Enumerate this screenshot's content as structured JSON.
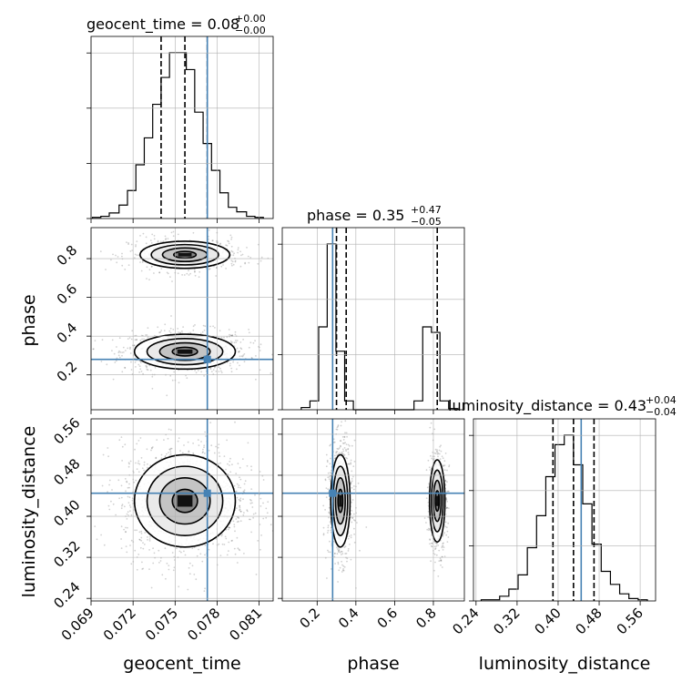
{
  "figure": {
    "type": "corner-plot",
    "truth_color": "#4682b4",
    "hist_color": "#000000",
    "grid": true
  },
  "parameters": {
    "geocent_time": {
      "label": "geocent_time",
      "title": "geocent_time = 0.08",
      "sup": "+0.00",
      "sub": "−0.00",
      "range": [
        0.069,
        0.082
      ],
      "ticks": [
        "0.069",
        "0.072",
        "0.075",
        "0.078",
        "0.081"
      ],
      "truth": 0.0773,
      "quantiles": [
        0.074,
        0.0757,
        0.0773
      ]
    },
    "phase": {
      "label": "phase",
      "title": "phase = 0.35",
      "sup": "+0.47",
      "sub": "−0.05",
      "range": [
        0.02,
        0.96
      ],
      "ticks": [
        "0.2",
        "0.4",
        "0.6",
        "0.8"
      ],
      "truth": 0.28,
      "quantiles": [
        0.3,
        0.35,
        0.82
      ]
    },
    "luminosity_distance": {
      "label": "luminosity_distance",
      "title": "luminosity_distance = 0.43",
      "sup": "+0.04",
      "sub": "−0.04",
      "range": [
        0.235,
        0.59
      ],
      "ticks": [
        "0.24",
        "0.32",
        "0.40",
        "0.48",
        "0.56"
      ],
      "truth": 0.445,
      "quantiles": [
        0.39,
        0.43,
        0.47
      ]
    }
  },
  "chart_data": {
    "type": "corner",
    "parameters": [
      "geocent_time",
      "phase",
      "luminosity_distance"
    ],
    "histograms": {
      "geocent_time": {
        "bin_edges": [
          0.0691,
          0.0697,
          0.0703,
          0.071,
          0.0716,
          0.0722,
          0.0728,
          0.0734,
          0.074,
          0.0746,
          0.0752,
          0.0758,
          0.0764,
          0.077,
          0.0776,
          0.0782,
          0.0788,
          0.0794,
          0.0801,
          0.0807,
          0.0813
        ],
        "counts": [
          1,
          2,
          5,
          12,
          25,
          48,
          72,
          102,
          126,
          148,
          148,
          133,
          95,
          67,
          43,
          23,
          10,
          6,
          2,
          1
        ]
      },
      "phase": {
        "bin_edges": [
          0.118,
          0.163,
          0.208,
          0.252,
          0.297,
          0.342,
          0.387,
          0.431,
          0.476,
          0.521,
          0.566,
          0.61,
          0.655,
          0.7,
          0.745,
          0.79,
          0.834,
          0.879,
          0.924
        ],
        "counts": [
          2,
          8,
          75,
          150,
          53,
          8,
          0,
          0,
          0,
          0,
          0,
          0,
          0,
          8,
          75,
          70,
          8,
          1
        ]
      },
      "luminosity_distance": {
        "bin_edges": [
          0.25,
          0.268,
          0.286,
          0.304,
          0.322,
          0.34,
          0.358,
          0.376,
          0.394,
          0.412,
          0.43,
          0.448,
          0.466,
          0.484,
          0.502,
          0.52,
          0.538,
          0.556,
          0.574
        ],
        "counts": [
          1,
          1,
          4,
          10,
          22,
          45,
          72,
          105,
          132,
          140,
          115,
          82,
          48,
          25,
          14,
          6,
          2,
          1
        ]
      }
    },
    "contours_2d": [
      {
        "x": "geocent_time",
        "y": "phase",
        "modes": [
          {
            "center": [
              0.0757,
              0.32
            ],
            "sigma": [
              0.0018,
              0.045
            ],
            "weight": 0.6
          },
          {
            "center": [
              0.0757,
              0.82
            ],
            "sigma": [
              0.0016,
              0.035
            ],
            "weight": 0.4
          }
        ]
      },
      {
        "x": "geocent_time",
        "y": "luminosity_distance",
        "modes": [
          {
            "center": [
              0.0757,
              0.43
            ],
            "sigma": [
              0.0018,
              0.045
            ],
            "weight": 1.0
          }
        ]
      },
      {
        "x": "phase",
        "y": "luminosity_distance",
        "modes": [
          {
            "center": [
              0.32,
              0.43
            ],
            "sigma": [
              0.025,
              0.045
            ],
            "weight": 0.6
          },
          {
            "center": [
              0.82,
              0.43
            ],
            "sigma": [
              0.02,
              0.04
            ],
            "weight": 0.4
          }
        ]
      }
    ]
  }
}
